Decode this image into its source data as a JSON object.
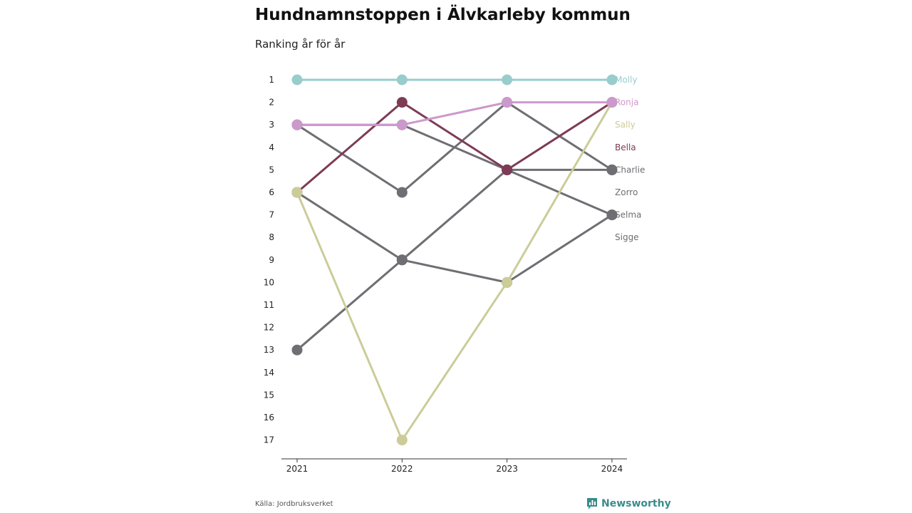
{
  "header": {
    "title": "Hundnamnstoppen i Älvkarleby kommun",
    "subtitle": "Ranking år för år"
  },
  "footer": {
    "source": "Källa: Jordbruksverket",
    "brand": "Newsworthy",
    "brand_icon": "newsworthy-chart-icon",
    "brand_color": "#3a8c8c"
  },
  "chart_data": {
    "type": "line",
    "title": "Hundnamnstoppen i Älvkarleby kommun",
    "subtitle": "Ranking år för år",
    "x": [
      2021,
      2022,
      2023,
      2024
    ],
    "x_ticks": [
      "2021",
      "2022",
      "2023",
      "2024"
    ],
    "y_ticks": [
      "1",
      "2",
      "3",
      "4",
      "5",
      "6",
      "7",
      "8",
      "9",
      "10",
      "11",
      "12",
      "13",
      "14",
      "15",
      "16",
      "17"
    ],
    "ylim": [
      1,
      17
    ],
    "y_inverted": true,
    "grid": false,
    "legend": "right-end labels",
    "series": [
      {
        "name": "Sigge",
        "color": "#6e6e73",
        "values": [
          13,
          9,
          10,
          7
        ]
      },
      {
        "name": "Selma",
        "color": "#6e6e73",
        "values": [
          3,
          3,
          5,
          7
        ]
      },
      {
        "name": "Zorro",
        "color": "#6e6e73",
        "values": [
          6,
          9,
          5,
          5
        ]
      },
      {
        "name": "Charlie",
        "color": "#6e6e73",
        "values": [
          3,
          6,
          2,
          5
        ]
      },
      {
        "name": "Bella",
        "color": "#7d3b55",
        "values": [
          6,
          2,
          5,
          2
        ]
      },
      {
        "name": "Sally",
        "color": "#cccc99",
        "values": [
          6,
          17,
          10,
          2
        ]
      },
      {
        "name": "Ronja",
        "color": "#cc99cc",
        "values": [
          3,
          3,
          2,
          2
        ]
      },
      {
        "name": "Molly",
        "color": "#99cccc",
        "values": [
          1,
          1,
          1,
          1
        ]
      }
    ],
    "labels": [
      {
        "name": "Molly",
        "color": "#99cccc",
        "rank": 1
      },
      {
        "name": "Ronja",
        "color": "#cc99cc",
        "rank": 2
      },
      {
        "name": "Sally",
        "color": "#cccc99",
        "rank": 3
      },
      {
        "name": "Bella",
        "color": "#7d3b55",
        "rank": 4
      },
      {
        "name": "Charlie",
        "color": "#6e6e73",
        "rank": 5
      },
      {
        "name": "Zorro",
        "color": "#6e6e73",
        "rank": 6
      },
      {
        "name": "Selma",
        "color": "#6e6e73",
        "rank": 7
      },
      {
        "name": "Sigge",
        "color": "#6e6e73",
        "rank": 8
      }
    ]
  }
}
